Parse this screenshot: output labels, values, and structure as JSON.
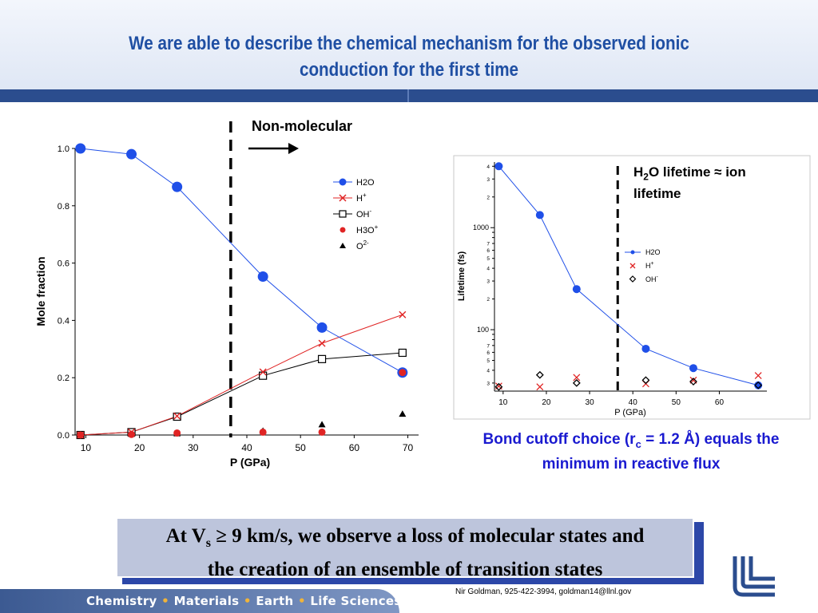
{
  "slide": {
    "title_line1": "We are able to describe the chemical mechanism for the observed ionic",
    "title_line2": "conduction for the first time",
    "arrow_label": "Non-molecular",
    "right_note_h2o": "H",
    "right_note_sub": "2",
    "right_note_rest": "O lifetime ≈ ion lifetime",
    "caption_part1": "Bond cutoff choice (r",
    "caption_sub": "c",
    "caption_part2": " = 1.2 Å) equals the minimum in reactive flux",
    "box_part1": "At V",
    "box_sub": "s",
    "box_part2": " ≥ 9 km/s, we observe a loss of molecular states and",
    "box_line2": "the creation of an ensemble of transition states",
    "footer_item1": "Chemistry",
    "footer_item2": "Materials",
    "footer_item3": "Earth",
    "footer_item4": "Life Sciences",
    "footer_sep": "•",
    "credit": "Nir Goldman, 925-422-3994, goldman14@llnl.gov",
    "logo_icon": "llnl-logo-icon",
    "accent_blue": "#1f4fa3",
    "series_blue": "#1f4fe8",
    "series_red": "#e02424"
  },
  "chart_data": [
    {
      "type": "line",
      "xlabel": "P (GPa)",
      "ylabel": "Mole fraction",
      "xlim": [
        8,
        72
      ],
      "ylim": [
        0,
        1
      ],
      "xticks": [
        10,
        20,
        30,
        40,
        50,
        60,
        70
      ],
      "yticks": [
        0.0,
        0.2,
        0.4,
        0.6,
        0.8,
        1.0
      ],
      "ytick_labels": [
        "0.0",
        "0.2",
        "0.4",
        "0.6",
        "0.8",
        "1.0"
      ],
      "legend_position": "top-right",
      "divider_x": 37,
      "series": [
        {
          "name": "H2O",
          "x": [
            9,
            18.5,
            27,
            43,
            54,
            69
          ],
          "y": [
            1.0,
            0.98,
            0.866,
            0.553,
            0.375,
            0.218
          ]
        },
        {
          "name": "H",
          "name_sup": "+",
          "x": [
            9,
            18.5,
            27,
            43,
            54,
            69
          ],
          "y": [
            0.0,
            0.01,
            0.066,
            0.22,
            0.32,
            0.42
          ]
        },
        {
          "name": "OH",
          "name_sup": "-",
          "x": [
            9,
            18.5,
            27,
            43,
            54,
            69
          ],
          "y": [
            0.0,
            0.01,
            0.064,
            0.207,
            0.265,
            0.287
          ]
        },
        {
          "name": "H3O",
          "name_sup": "+",
          "x": [
            9,
            18.5,
            27,
            43,
            54,
            69
          ],
          "y": [
            0.0,
            0.002,
            0.007,
            0.01,
            0.01,
            0.218
          ]
        },
        {
          "name": "O",
          "name_sup": "2-",
          "x": [
            9,
            18.5,
            27,
            43,
            54,
            69
          ],
          "y": [
            0.0,
            0.002,
            0.004,
            0.013,
            0.035,
            0.072
          ]
        }
      ]
    },
    {
      "type": "line",
      "xlabel": "P (GPa)",
      "ylabel": "Lifetime (fs)",
      "log_y": true,
      "xlim": [
        8,
        71
      ],
      "ylim": [
        25,
        4400
      ],
      "xticks": [
        10,
        20,
        30,
        40,
        50,
        60
      ],
      "ytick_labels_major": [
        "100",
        "1000"
      ],
      "minor_tick_digits": [
        "2",
        "3",
        "4",
        "5",
        "6",
        "7"
      ],
      "legend_position": "center-right",
      "divider_x": 36.5,
      "series": [
        {
          "name": "H2O",
          "x": [
            9,
            18.5,
            27,
            43,
            54,
            69
          ],
          "y": [
            4000,
            1330,
            250,
            65,
            42,
            28.5
          ]
        },
        {
          "name": "H",
          "name_sup": "+",
          "x": [
            9,
            18.5,
            27,
            43,
            54,
            69
          ],
          "y": [
            28,
            27.5,
            34,
            29.5,
            32,
            35.5
          ]
        },
        {
          "name": "OH",
          "name_sup": "-",
          "x": [
            9,
            18.5,
            27,
            43,
            54,
            69
          ],
          "y": [
            27.5,
            36,
            30,
            32,
            31,
            28.5
          ]
        }
      ]
    }
  ]
}
